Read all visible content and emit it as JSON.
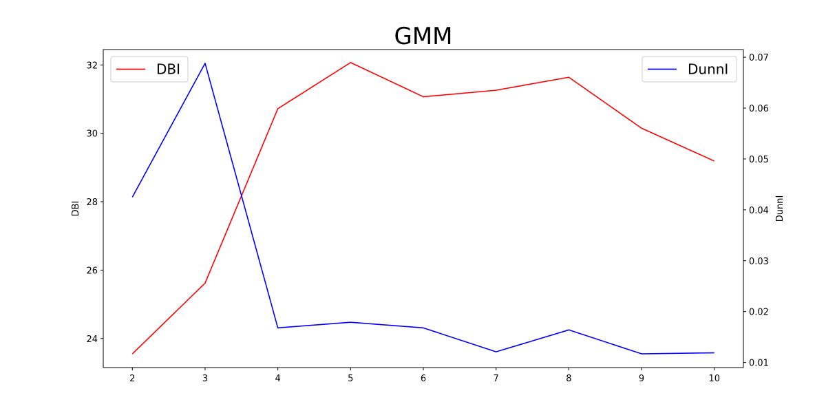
{
  "chart_data": {
    "type": "line",
    "title": "GMM",
    "xlabel": "",
    "ylabel": "DBI",
    "y2label": "DunnI",
    "x": [
      2,
      3,
      4,
      5,
      6,
      7,
      8,
      9,
      10
    ],
    "xlim": [
      1.6,
      10.4
    ],
    "ylim": [
      23.15,
      32.45
    ],
    "y2lim": [
      0.009,
      0.0715
    ],
    "xticks": [
      "2",
      "3",
      "4",
      "5",
      "6",
      "7",
      "8",
      "9",
      "10"
    ],
    "yticks": [
      "24",
      "26",
      "28",
      "30",
      "32"
    ],
    "y2ticks": [
      "0.01",
      "0.02",
      "0.03",
      "0.04",
      "0.05",
      "0.06",
      "0.07"
    ],
    "series": [
      {
        "name": "DBI",
        "axis": "left",
        "color": "#ff0000",
        "values": [
          23.55,
          25.62,
          30.72,
          32.07,
          31.07,
          31.26,
          31.64,
          30.15,
          29.19
        ]
      },
      {
        "name": "DunnI",
        "axis": "right",
        "color": "#0000ff",
        "values": [
          0.0425,
          0.0688,
          0.0168,
          0.0179,
          0.0168,
          0.0121,
          0.0164,
          0.0117,
          0.0119
        ]
      }
    ],
    "legends": [
      {
        "placement": "upper-left",
        "series": "DBI"
      },
      {
        "placement": "upper-right",
        "series": "DunnI"
      }
    ],
    "grid": false
  }
}
